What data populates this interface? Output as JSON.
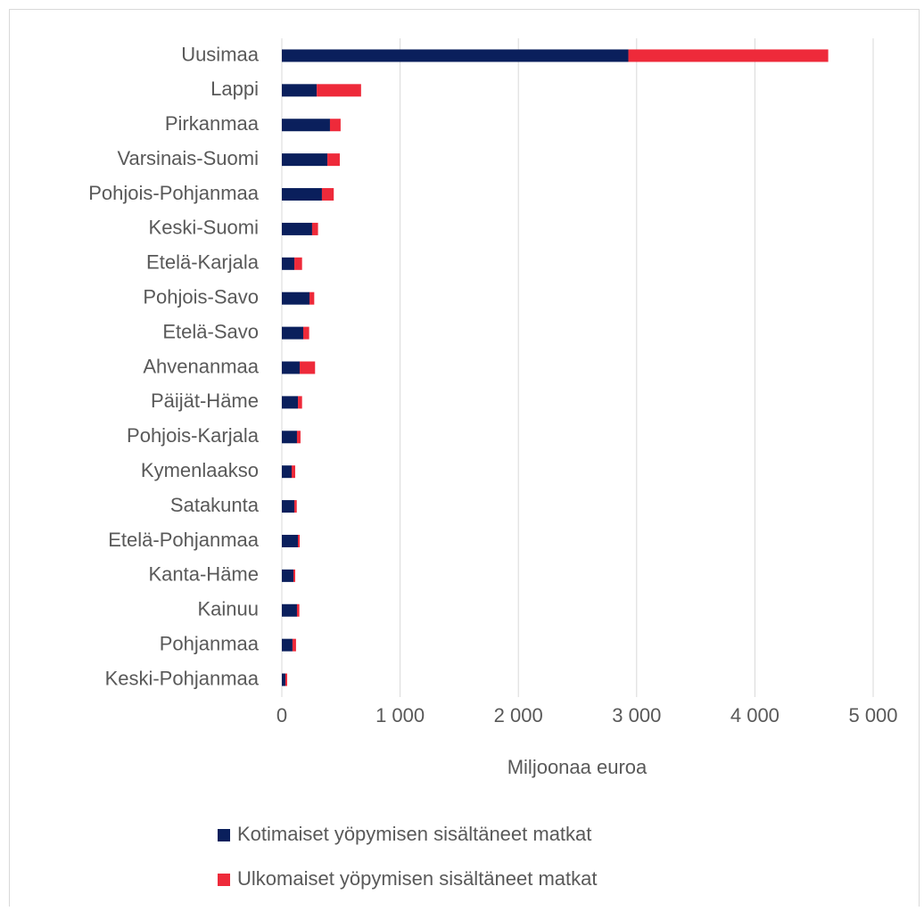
{
  "chart_data": {
    "type": "stacked_barh",
    "categories": [
      "Uusimaa",
      "Lappi",
      "Pirkanmaa",
      "Varsinais-Suomi",
      "Pohjois-Pohjanmaa",
      "Keski-Suomi",
      "Etelä-Karjala",
      "Pohjois-Savo",
      "Etelä-Savo",
      "Ahvenanmaa",
      "Päijät-Häme",
      "Pohjois-Karjala",
      "Kymenlaakso",
      "Satakunta",
      "Etelä-Pohjanmaa",
      "Kanta-Häme",
      "Kainuu",
      "Pohjanmaa",
      "Keski-Pohjanmaa"
    ],
    "series": [
      {
        "name": "Kotimaiset yöpymisen sisältäneet matkat",
        "color": "#0a1f5c",
        "values": [
          2930,
          295,
          407,
          385,
          339,
          256,
          106,
          234,
          181,
          151,
          136,
          128,
          83,
          106,
          136,
          98,
          128,
          90,
          30
        ]
      },
      {
        "name": "Ulkomaiset yöpymisen sisältäneet matkat",
        "color": "#ee2a3a",
        "values": [
          1690,
          375,
          90,
          105,
          100,
          50,
          65,
          40,
          50,
          130,
          35,
          30,
          30,
          20,
          15,
          15,
          20,
          30,
          15
        ]
      }
    ],
    "xlabel": "Miljoonaa euroa",
    "xlim": [
      0,
      5000
    ],
    "xticks": [
      0,
      {
        "value": 1000,
        "label": "1 000"
      },
      {
        "value": 2000,
        "label": "2 000"
      },
      {
        "value": 3000,
        "label": "3 000"
      },
      {
        "value": 4000,
        "label": "4 000"
      },
      {
        "value": 5000,
        "label": "5 000"
      }
    ],
    "grid": true,
    "legend": "bottom"
  }
}
